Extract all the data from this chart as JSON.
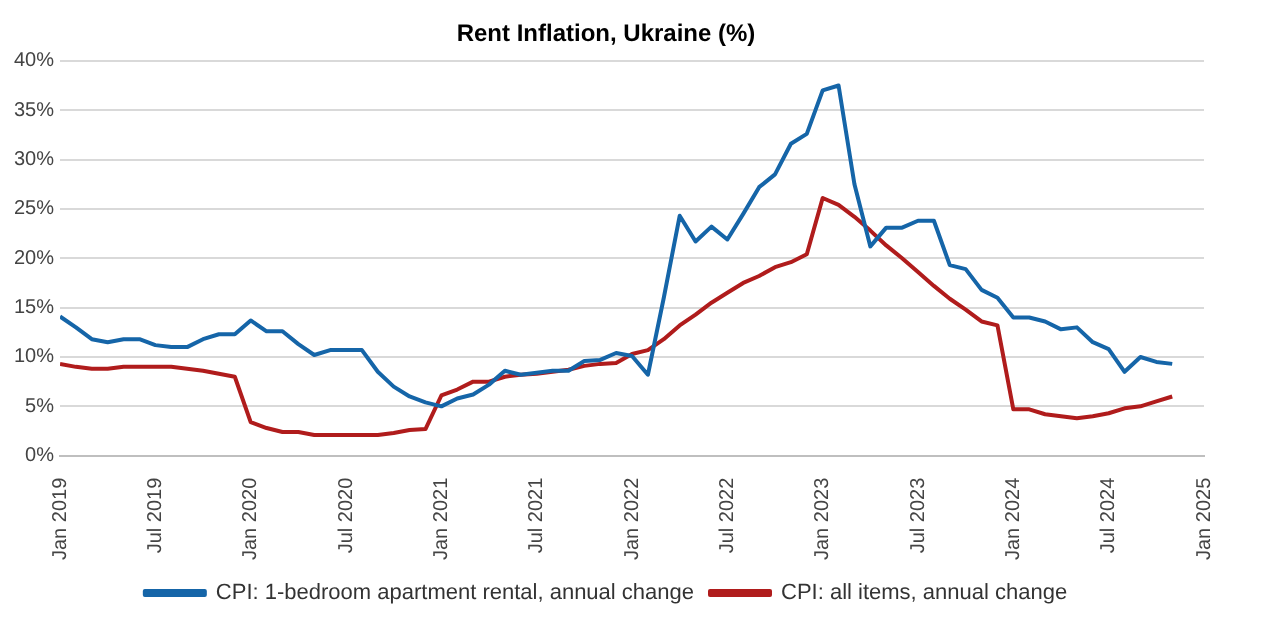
{
  "chart_data": {
    "type": "line",
    "title": "Rent Inflation, Ukraine (%)",
    "x": [
      "2019-01",
      "2019-02",
      "2019-03",
      "2019-04",
      "2019-05",
      "2019-06",
      "2019-07",
      "2019-08",
      "2019-09",
      "2019-10",
      "2019-11",
      "2019-12",
      "2020-01",
      "2020-02",
      "2020-03",
      "2020-04",
      "2020-05",
      "2020-06",
      "2020-07",
      "2020-08",
      "2020-09",
      "2020-10",
      "2020-11",
      "2020-12",
      "2021-01",
      "2021-02",
      "2021-03",
      "2021-04",
      "2021-05",
      "2021-06",
      "2021-07",
      "2021-08",
      "2021-09",
      "2021-10",
      "2021-11",
      "2021-12",
      "2022-01",
      "2022-02",
      "2022-03",
      "2022-04",
      "2022-05",
      "2022-06",
      "2022-07",
      "2022-08",
      "2022-09",
      "2022-10",
      "2022-11",
      "2022-12",
      "2023-01",
      "2023-02",
      "2023-03",
      "2023-04",
      "2023-05",
      "2023-06",
      "2023-07",
      "2023-08",
      "2023-09",
      "2023-10",
      "2023-11",
      "2023-12",
      "2024-01",
      "2024-02",
      "2024-03",
      "2024-04",
      "2024-05",
      "2024-06",
      "2024-07",
      "2024-08",
      "2024-09",
      "2024-10",
      "2024-11"
    ],
    "series": [
      {
        "name": "CPI: 1-bedroom apartment rental, annual change",
        "color": "#1565a8",
        "values": [
          14.1,
          13.0,
          11.8,
          11.5,
          11.8,
          11.8,
          11.2,
          11.0,
          11.0,
          11.8,
          12.3,
          12.3,
          13.7,
          12.6,
          12.6,
          11.3,
          10.2,
          10.7,
          10.7,
          10.7,
          8.5,
          7.0,
          6.0,
          5.4,
          5.0,
          5.8,
          6.2,
          7.2,
          8.6,
          8.2,
          8.4,
          8.6,
          8.6,
          9.6,
          9.7,
          10.4,
          10.1,
          8.2,
          16.0,
          24.3,
          21.7,
          23.2,
          21.9,
          24.5,
          27.2,
          28.5,
          31.6,
          32.6,
          37.0,
          37.5,
          27.5,
          21.2,
          23.1,
          23.1,
          23.8,
          23.8,
          19.3,
          18.9,
          16.8,
          16.0,
          14.0,
          14.0,
          13.6,
          12.8,
          13.0,
          11.5,
          10.8,
          8.5,
          10.0,
          9.5,
          9.3
        ]
      },
      {
        "name": "CPI: all items, annual change",
        "color": "#b01c1c",
        "values": [
          9.3,
          9.0,
          8.8,
          8.8,
          9.0,
          9.0,
          9.0,
          9.0,
          8.8,
          8.6,
          8.3,
          8.0,
          3.4,
          2.8,
          2.4,
          2.4,
          2.1,
          2.1,
          2.1,
          2.1,
          2.1,
          2.3,
          2.6,
          2.7,
          6.1,
          6.7,
          7.5,
          7.5,
          8.0,
          8.2,
          8.3,
          8.5,
          8.7,
          9.1,
          9.3,
          9.4,
          10.3,
          10.7,
          11.8,
          13.2,
          14.3,
          15.5,
          16.5,
          17.5,
          18.2,
          19.1,
          19.6,
          20.4,
          26.1,
          25.4,
          24.2,
          22.8,
          21.3,
          20.0,
          18.6,
          17.2,
          15.9,
          14.8,
          13.6,
          13.2,
          4.7,
          4.7,
          4.2,
          4.0,
          3.8,
          4.0,
          4.3,
          4.8,
          5.0,
          5.5,
          6.0
        ]
      }
    ],
    "xlim": [
      "2019-01",
      "2025-01"
    ],
    "xticks": [
      {
        "value": "2019-01",
        "label": "Jan 2019"
      },
      {
        "value": "2019-07",
        "label": "Jul 2019"
      },
      {
        "value": "2020-01",
        "label": "Jan 2020"
      },
      {
        "value": "2020-07",
        "label": "Jul 2020"
      },
      {
        "value": "2021-01",
        "label": "Jan 2021"
      },
      {
        "value": "2021-07",
        "label": "Jul 2021"
      },
      {
        "value": "2022-01",
        "label": "Jan 2022"
      },
      {
        "value": "2022-07",
        "label": "Jul 2022"
      },
      {
        "value": "2023-01",
        "label": "Jan 2023"
      },
      {
        "value": "2023-07",
        "label": "Jul 2023"
      },
      {
        "value": "2024-01",
        "label": "Jan 2024"
      },
      {
        "value": "2024-07",
        "label": "Jul 2024"
      },
      {
        "value": "2025-01",
        "label": "Jan 2025"
      }
    ],
    "ylim": [
      0,
      40
    ],
    "yticks": [
      {
        "value": 0,
        "label": "0%"
      },
      {
        "value": 5,
        "label": "5%"
      },
      {
        "value": 10,
        "label": "10%"
      },
      {
        "value": 15,
        "label": "15%"
      },
      {
        "value": 20,
        "label": "20%"
      },
      {
        "value": 25,
        "label": "25%"
      },
      {
        "value": 30,
        "label": "30%"
      },
      {
        "value": 35,
        "label": "35%"
      },
      {
        "value": 40,
        "label": "40%"
      }
    ],
    "grid": "y",
    "legend": "bottom",
    "marker": "none",
    "line_style": "solid"
  }
}
